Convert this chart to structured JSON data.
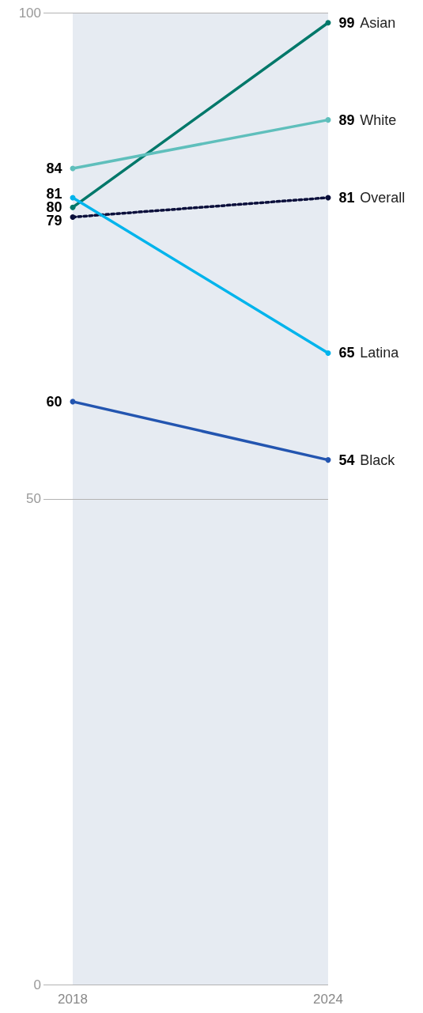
{
  "chart_data": {
    "type": "line",
    "x": [
      2018,
      2024
    ],
    "xlim": [
      2018,
      2024
    ],
    "xticks": [
      2018,
      2024
    ],
    "ylim": [
      0,
      100
    ],
    "yticks": [
      0,
      50,
      100
    ],
    "grid": "y",
    "legend": false,
    "marker": "circle",
    "data_labels": true,
    "bands": [
      {
        "axis": "x",
        "from": 2018,
        "to": 2024,
        "color": "#e6ebf2"
      }
    ],
    "series": [
      {
        "name": "Asian",
        "color": "#00786a",
        "values": [
          80,
          99
        ]
      },
      {
        "name": "White",
        "color": "#5fbfbc",
        "values": [
          84,
          89
        ]
      },
      {
        "name": "Overall",
        "color": "#0b0f3b",
        "values": [
          79,
          81
        ],
        "line_style": "dotted"
      },
      {
        "name": "Latina",
        "color": "#00b4ec",
        "values": [
          81,
          65
        ]
      },
      {
        "name": "Black",
        "color": "#2355b0",
        "values": [
          60,
          54
        ]
      }
    ]
  }
}
